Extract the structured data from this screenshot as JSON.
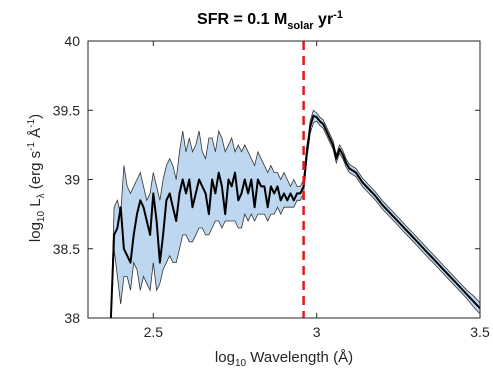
{
  "chart_data": {
    "type": "line",
    "title": {
      "prefix": "SFR = 0.1 M",
      "subscript": "solar",
      "mid": " yr",
      "superscript": "-1"
    },
    "xlabel": {
      "prefix": "log",
      "subscript": "10",
      "suffix": " Wavelength (Å)"
    },
    "ylabel": {
      "prefix": "log",
      "subscript": "10",
      "mid": " L",
      "subscript2": "λ",
      "units": " (erg s",
      "sup1": "-1",
      "units2": " Å",
      "sup2": "-1",
      "close": ")"
    },
    "xlim": [
      2.3,
      3.5
    ],
    "ylim": [
      38,
      40
    ],
    "xticks": [
      "2.5",
      "3",
      "3.5"
    ],
    "yticks": [
      "38",
      "38.5",
      "39",
      "39.5",
      "40"
    ],
    "grid": false,
    "marker_x": 2.96,
    "colors": {
      "median": "#000000",
      "band_fill": "#bdd7f0",
      "band_edge": "#333333",
      "marker": "#e31a1c"
    },
    "series": [
      {
        "x": [
          2.37,
          2.38,
          2.39,
          2.4,
          2.41,
          2.42,
          2.43,
          2.44,
          2.45,
          2.46,
          2.47,
          2.48,
          2.49,
          2.5,
          2.51,
          2.52,
          2.53,
          2.54,
          2.55,
          2.56,
          2.57,
          2.58,
          2.59,
          2.6,
          2.61,
          2.62,
          2.63,
          2.64,
          2.65,
          2.66,
          2.67,
          2.68,
          2.69,
          2.7,
          2.71,
          2.72,
          2.73,
          2.74,
          2.75,
          2.76,
          2.77,
          2.78,
          2.79,
          2.8,
          2.81,
          2.82,
          2.83,
          2.84,
          2.85,
          2.86,
          2.87,
          2.88,
          2.89,
          2.9,
          2.91,
          2.92,
          2.93,
          2.94,
          2.95,
          2.96,
          2.97,
          2.975,
          2.98,
          2.99,
          3.0,
          3.01,
          3.02,
          3.03,
          3.04,
          3.05,
          3.06,
          3.07,
          3.08,
          3.09,
          3.1,
          3.12,
          3.14,
          3.16,
          3.18,
          3.2,
          3.22,
          3.24,
          3.26,
          3.28,
          3.3,
          3.32,
          3.34,
          3.36,
          3.38,
          3.4,
          3.42,
          3.44,
          3.46,
          3.48,
          3.5
        ],
        "median": [
          38.0,
          38.6,
          38.65,
          38.8,
          38.5,
          38.45,
          38.4,
          38.6,
          38.75,
          38.85,
          38.8,
          38.7,
          38.6,
          38.9,
          38.7,
          38.4,
          38.6,
          38.85,
          38.9,
          38.8,
          38.7,
          38.9,
          39.0,
          38.9,
          39.0,
          38.8,
          38.9,
          39.0,
          38.95,
          38.9,
          38.75,
          39.0,
          38.9,
          39.05,
          38.95,
          38.75,
          39.0,
          38.95,
          39.05,
          38.85,
          38.9,
          39.0,
          38.9,
          39.0,
          38.8,
          39.0,
          38.95,
          38.95,
          38.8,
          38.95,
          38.9,
          38.95,
          38.85,
          38.9,
          38.85,
          38.9,
          38.85,
          38.9,
          38.9,
          38.95,
          39.2,
          39.28,
          39.38,
          39.46,
          39.45,
          39.42,
          39.4,
          39.35,
          39.3,
          39.25,
          39.15,
          39.22,
          39.18,
          39.12,
          39.08,
          39.05,
          38.98,
          38.93,
          38.88,
          38.82,
          38.77,
          38.72,
          38.67,
          38.62,
          38.57,
          38.52,
          38.47,
          38.42,
          38.37,
          38.32,
          38.27,
          38.22,
          38.17,
          38.12,
          38.07
        ],
        "lower": [
          38.0,
          38.5,
          38.3,
          38.1,
          38.3,
          38.3,
          38.2,
          38.4,
          38.35,
          38.2,
          38.3,
          38.25,
          38.2,
          38.4,
          38.2,
          38.25,
          38.35,
          38.4,
          38.45,
          38.4,
          38.4,
          38.5,
          38.6,
          38.6,
          38.55,
          38.55,
          38.6,
          38.65,
          38.65,
          38.6,
          38.6,
          38.65,
          38.7,
          38.7,
          38.65,
          38.7,
          38.7,
          38.7,
          38.7,
          38.65,
          38.65,
          38.75,
          38.7,
          38.75,
          38.7,
          38.75,
          38.75,
          38.75,
          38.7,
          38.75,
          38.75,
          38.8,
          38.75,
          38.8,
          38.8,
          38.8,
          38.8,
          38.85,
          38.85,
          38.9,
          39.15,
          39.24,
          39.33,
          39.41,
          39.42,
          39.39,
          39.37,
          39.32,
          39.27,
          39.22,
          39.12,
          39.19,
          39.15,
          39.09,
          39.05,
          39.02,
          38.95,
          38.9,
          38.85,
          38.79,
          38.74,
          38.69,
          38.64,
          38.59,
          38.54,
          38.49,
          38.44,
          38.39,
          38.34,
          38.29,
          38.24,
          38.19,
          38.14,
          38.08,
          38.03
        ],
        "upper": [
          38.0,
          38.8,
          38.85,
          38.75,
          39.1,
          38.95,
          38.9,
          38.95,
          39.0,
          39.05,
          38.95,
          38.85,
          38.9,
          39.05,
          38.95,
          38.85,
          39.0,
          39.1,
          39.15,
          39.1,
          39.0,
          39.2,
          39.35,
          39.2,
          39.3,
          39.2,
          39.25,
          39.35,
          39.2,
          39.15,
          39.3,
          39.3,
          39.2,
          39.35,
          39.3,
          39.2,
          39.25,
          39.3,
          39.2,
          39.25,
          39.2,
          39.25,
          39.2,
          39.15,
          39.1,
          39.2,
          39.15,
          39.1,
          39.05,
          39.1,
          39.05,
          39.05,
          39.0,
          39.05,
          39.0,
          38.95,
          39.0,
          38.95,
          38.95,
          39.0,
          39.25,
          39.32,
          39.42,
          39.5,
          39.48,
          39.45,
          39.43,
          39.38,
          39.33,
          39.28,
          39.18,
          39.25,
          39.21,
          39.15,
          39.11,
          39.08,
          39.01,
          38.96,
          38.91,
          38.85,
          38.8,
          38.75,
          38.7,
          38.65,
          38.6,
          38.55,
          38.5,
          38.45,
          38.4,
          38.35,
          38.3,
          38.25,
          38.2,
          38.16,
          38.11
        ]
      }
    ]
  }
}
